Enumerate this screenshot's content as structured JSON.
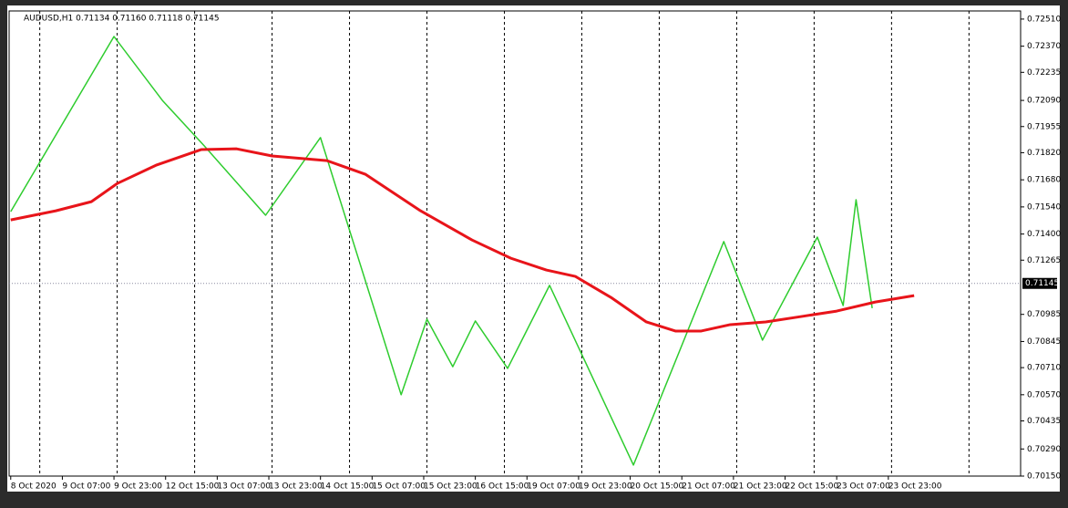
{
  "chart_data": {
    "type": "line",
    "title": "AUDUSD,H1  0.71134 0.71160 0.71118 0.71145",
    "xlim": [
      -0.5,
      313
    ],
    "ylim": [
      0.7015,
      0.72552
    ],
    "xticks": [
      {
        "value": 0,
        "label": "8 Oct 2020"
      },
      {
        "value": 16,
        "label": "9 Oct 07:00"
      },
      {
        "value": 32,
        "label": "9 Oct 23:00"
      },
      {
        "value": 48,
        "label": "12 Oct 15:00"
      },
      {
        "value": 64,
        "label": "13 Oct 07:00"
      },
      {
        "value": 80,
        "label": "13 Oct 23:00"
      },
      {
        "value": 96,
        "label": "14 Oct 15:00"
      },
      {
        "value": 112,
        "label": "15 Oct 07:00"
      },
      {
        "value": 128,
        "label": "15 Oct 23:00"
      },
      {
        "value": 144,
        "label": "16 Oct 15:00"
      },
      {
        "value": 160,
        "label": "19 Oct 07:00"
      },
      {
        "value": 176,
        "label": "19 Oct 23:00"
      },
      {
        "value": 192,
        "label": "20 Oct 15:00"
      },
      {
        "value": 208,
        "label": "21 Oct 07:00"
      },
      {
        "value": 224,
        "label": "21 Oct 23:00"
      },
      {
        "value": 240,
        "label": "22 Oct 15:00"
      },
      {
        "value": 256,
        "label": "23 Oct 07:00"
      },
      {
        "value": 272,
        "label": "23 Oct 23:00"
      }
    ],
    "xgrid": [
      9,
      33,
      57,
      81,
      105,
      129,
      153,
      177,
      201,
      225,
      249,
      273,
      297
    ],
    "yticks": [
      {
        "value": 0.7251,
        "label": "0.72510"
      },
      {
        "value": 0.7237,
        "label": "0.72370"
      },
      {
        "value": 0.72235,
        "label": "0.72235"
      },
      {
        "value": 0.7209,
        "label": "0.72090"
      },
      {
        "value": 0.71955,
        "label": "0.71955"
      },
      {
        "value": 0.7182,
        "label": "0.71820"
      },
      {
        "value": 0.7168,
        "label": "0.71680"
      },
      {
        "value": 0.7154,
        "label": "0.71540"
      },
      {
        "value": 0.714,
        "label": "0.71400"
      },
      {
        "value": 0.71265,
        "label": "0.71265"
      },
      {
        "value": 0.70985,
        "label": "0.70985"
      },
      {
        "value": 0.70845,
        "label": "0.70845"
      },
      {
        "value": 0.7071,
        "label": "0.70710"
      },
      {
        "value": 0.7057,
        "label": "0.70570"
      },
      {
        "value": 0.70435,
        "label": "0.70435"
      },
      {
        "value": 0.7029,
        "label": "0.70290"
      },
      {
        "value": 0.7015,
        "label": "0.70150"
      }
    ],
    "current_price": {
      "value": 0.71145,
      "label": "0.71145"
    },
    "series": [
      {
        "color": "#2ecc2e",
        "x": [
          0,
          32,
          47,
          60,
          79,
          96,
          121,
          129,
          137,
          144,
          154,
          167,
          193,
          221,
          233,
          250,
          258,
          262,
          267
        ],
        "values": [
          0.71516,
          0.7242,
          0.7209,
          0.71855,
          0.71497,
          0.71898,
          0.7057,
          0.7096,
          0.70715,
          0.70951,
          0.70706,
          0.71135,
          0.70207,
          0.71361,
          0.70852,
          0.71384,
          0.71031,
          0.71577,
          0.71017
        ]
      },
      {
        "color": "#e8141a",
        "x": [
          0,
          14,
          25,
          33,
          45,
          59,
          70,
          81,
          98,
          110,
          127,
          143,
          155,
          166,
          175,
          186,
          197,
          206,
          214,
          223,
          234,
          245,
          256,
          268,
          280
        ],
        "values": [
          0.71473,
          0.7152,
          0.71567,
          0.71661,
          0.71755,
          0.71836,
          0.7184,
          0.71803,
          0.71779,
          0.71708,
          0.7152,
          0.71369,
          0.71275,
          0.71214,
          0.71181,
          0.71073,
          0.70946,
          0.70899,
          0.70899,
          0.70932,
          0.70946,
          0.70974,
          0.71002,
          0.71049,
          0.71082
        ]
      }
    ]
  }
}
